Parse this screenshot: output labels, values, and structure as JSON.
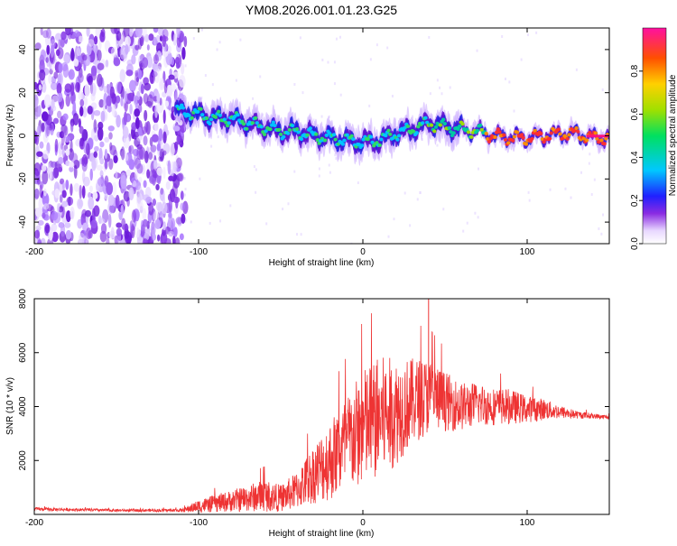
{
  "chart_data": [
    {
      "type": "heatmap",
      "title": "YM08.2026.001.01.23.G25",
      "xlabel": "Height of straight line (km)",
      "ylabel": "Frequency (Hz)",
      "xlim": [
        -200,
        150
      ],
      "ylim": [
        -50,
        50
      ],
      "xticks": [
        -200,
        -100,
        0,
        100
      ],
      "yticks": [
        -40,
        -20,
        0,
        20,
        40
      ],
      "colorbar": {
        "label": "Normalized spectral amplitude",
        "ticks": [
          0.0,
          0.2,
          0.4,
          0.6,
          0.8
        ],
        "tick_labels": [
          "0.0",
          "0.2",
          "0.4",
          "0.6",
          "0.8"
        ],
        "range": [
          0,
          1
        ]
      },
      "ridge": {
        "description_points_x": [
          -115,
          -100,
          -90,
          -80,
          -70,
          -60,
          -50,
          -40,
          -30,
          -20,
          -10,
          0,
          10,
          20,
          30,
          40,
          50,
          60,
          70,
          80,
          90,
          100,
          110,
          120,
          130,
          140,
          150
        ],
        "description_points_y": [
          12,
          10,
          8,
          8,
          6,
          4,
          2,
          2,
          0,
          -1,
          -2,
          -3,
          -2,
          1,
          3,
          6,
          4,
          3,
          2,
          0,
          -1,
          -1,
          0,
          1,
          1,
          -1,
          -1
        ]
      },
      "noise_region_x": [
        -200,
        -112
      ]
    },
    {
      "type": "line",
      "title": "",
      "xlabel": "Height of straight line (km)",
      "ylabel": "SNR (10 * v/v)",
      "xlim": [
        -200,
        150
      ],
      "ylim": [
        0,
        8000
      ],
      "xticks": [
        -200,
        -100,
        0,
        100
      ],
      "yticks": [
        2000,
        4000,
        6000,
        8000
      ],
      "series": [
        {
          "name": "SNR",
          "color": "#ee3333",
          "envelope_x": [
            -200,
            -150,
            -110,
            -100,
            -80,
            -60,
            -50,
            -40,
            -30,
            -20,
            -10,
            0,
            10,
            20,
            30,
            40,
            50,
            60,
            70,
            80,
            90,
            100,
            110,
            120,
            130,
            140,
            150
          ],
          "mean_y": [
            200,
            150,
            150,
            300,
            500,
            700,
            600,
            900,
            1500,
            2000,
            2600,
            3200,
            3600,
            3800,
            4200,
            4400,
            4200,
            4000,
            4100,
            4000,
            4000,
            3900,
            3900,
            3800,
            3700,
            3650,
            3600
          ],
          "amp_y": [
            60,
            50,
            60,
            250,
            400,
            600,
            500,
            700,
            1100,
            1500,
            1800,
            2200,
            2300,
            2000,
            1600,
            1400,
            1100,
            900,
            800,
            700,
            650,
            500,
            400,
            250,
            150,
            100,
            80
          ]
        }
      ]
    }
  ]
}
